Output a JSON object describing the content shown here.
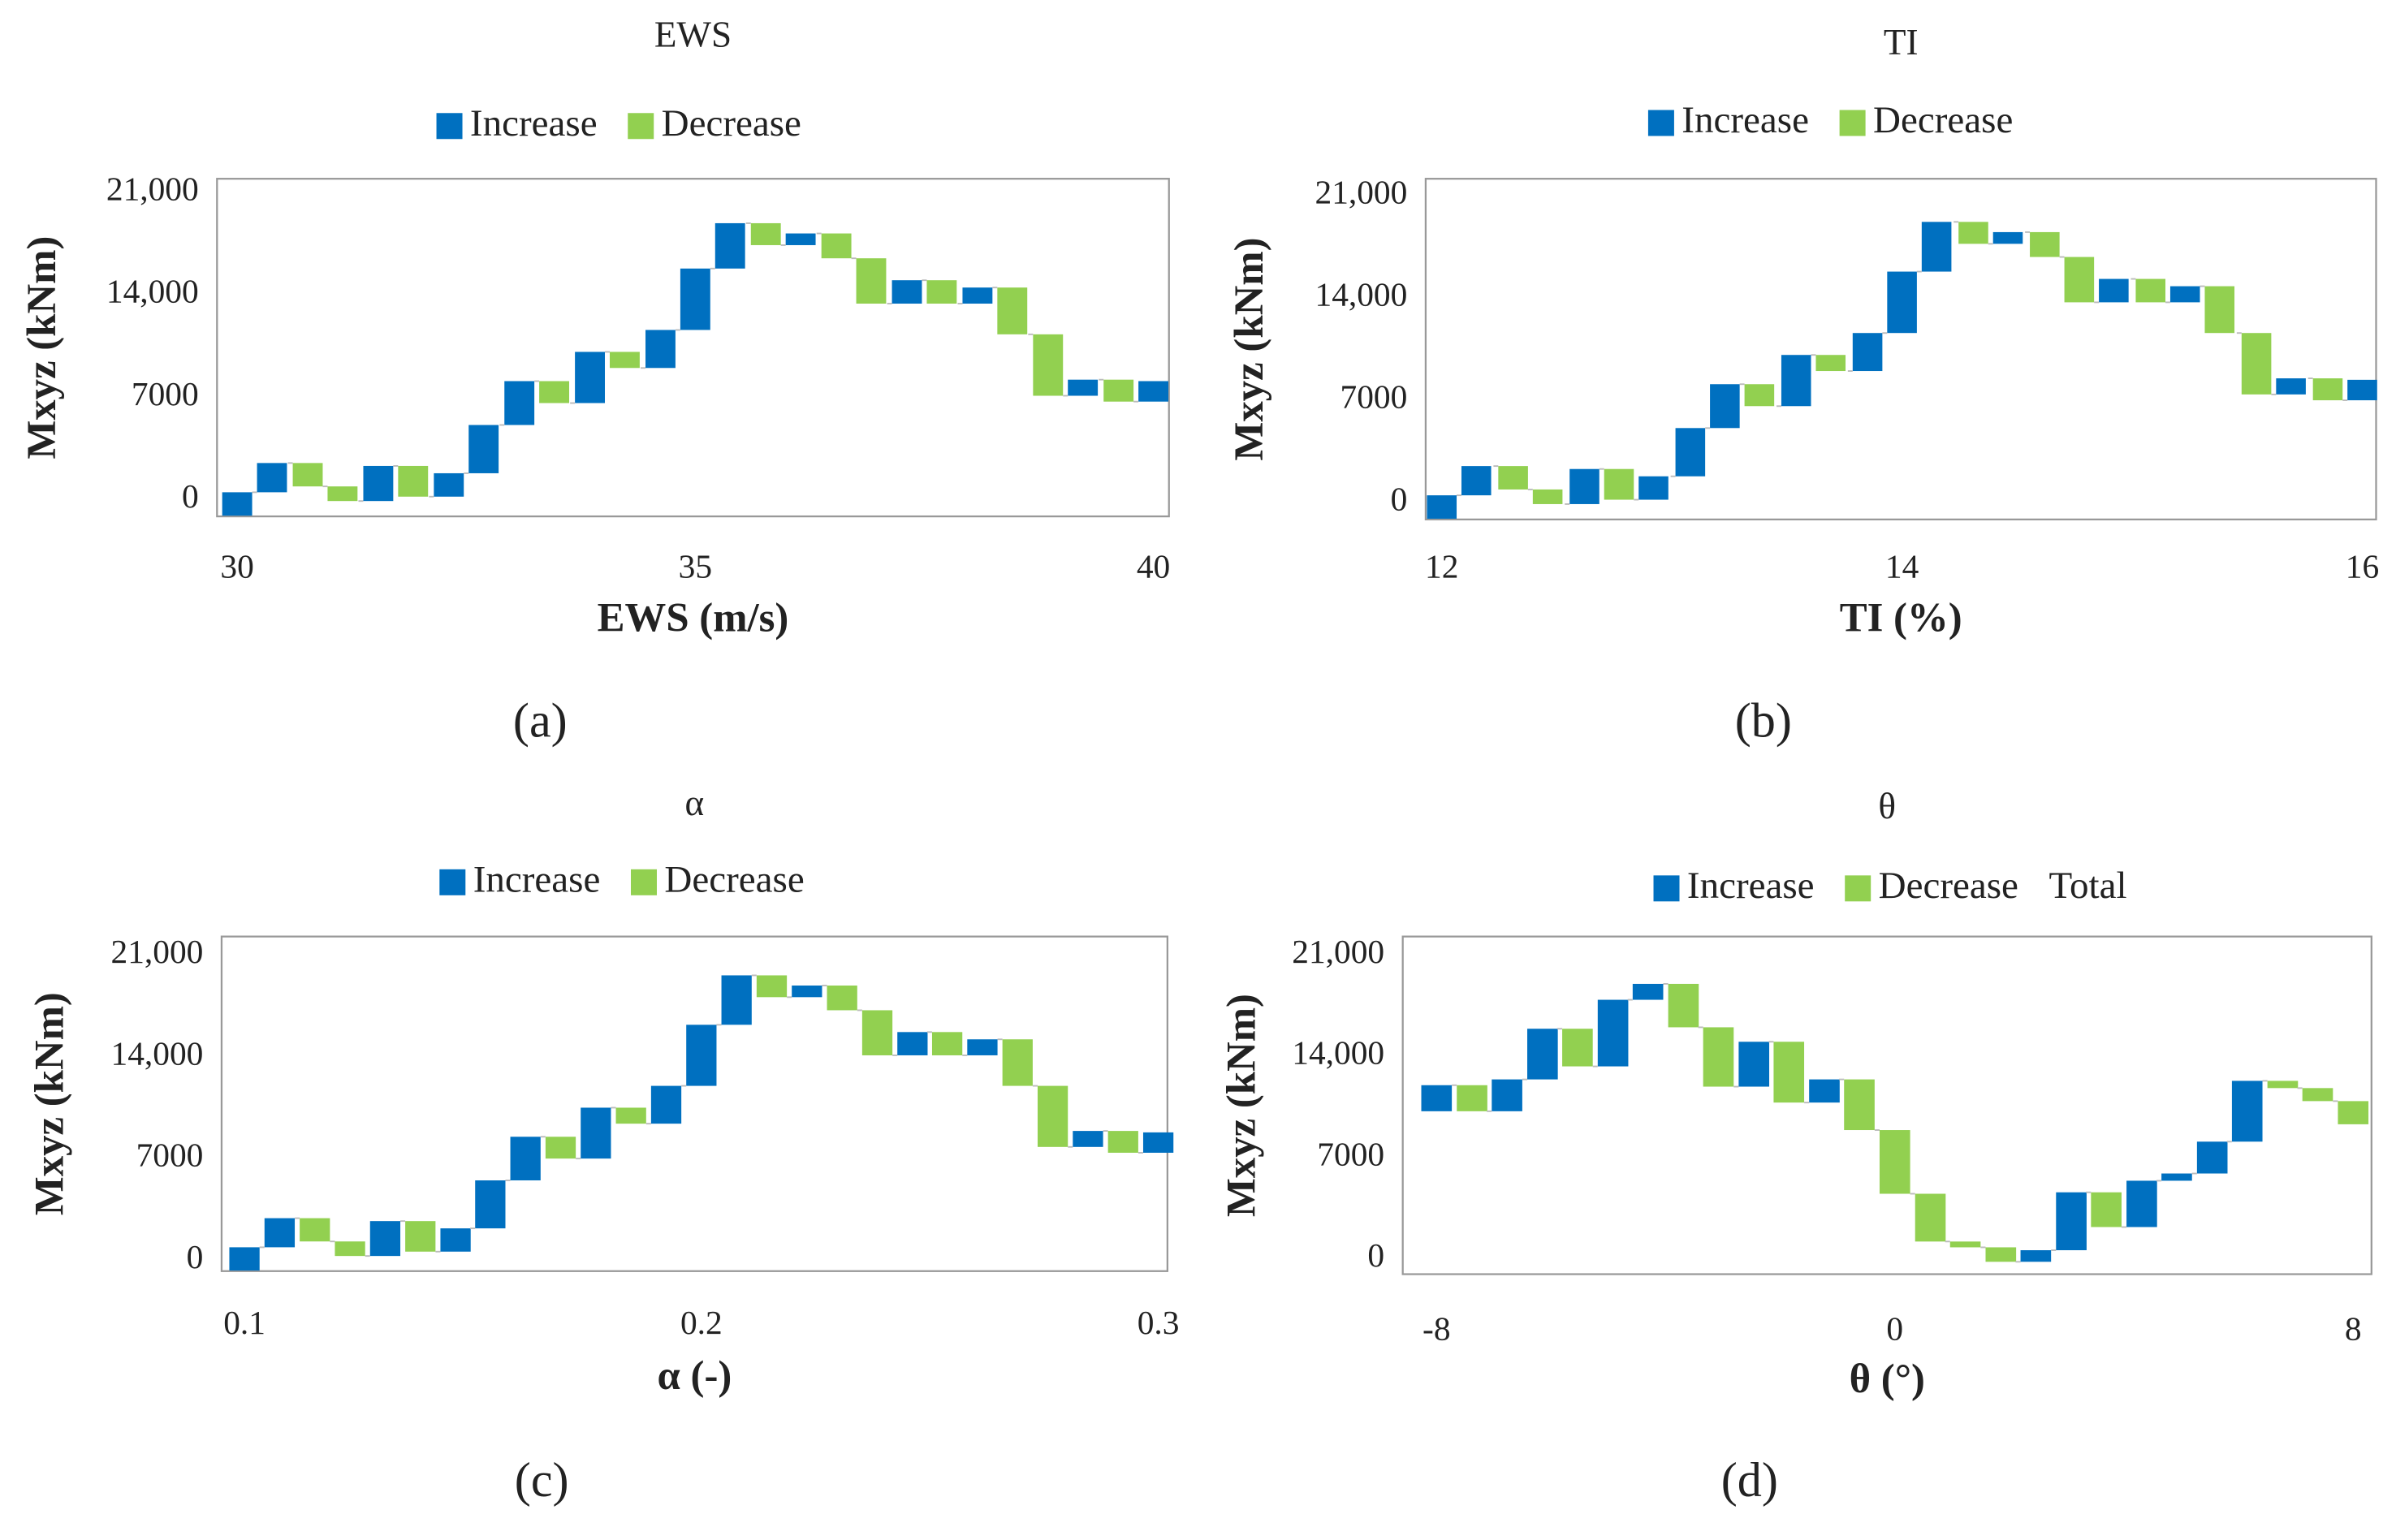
{
  "chart_data": [
    {
      "type": "waterfall",
      "title": "EWS",
      "label": "(a)",
      "xlabel": "EWS (m/s)",
      "ylabel": "Mxyz (kNm)",
      "series": [
        {
          "name": "Increase",
          "color": "#0070c0"
        },
        {
          "name": "Decrease",
          "color": "#92d050"
        }
      ],
      "start": -1100,
      "x": [
        30,
        30.38,
        30.77,
        31.15,
        31.54,
        31.92,
        32.31,
        32.69,
        33.08,
        33.46,
        33.85,
        34.23,
        34.62,
        35,
        35.38,
        35.77,
        36.15,
        36.54,
        36.92,
        37.31,
        37.69,
        38.08,
        38.46,
        38.85,
        39.23,
        39.62,
        40
      ],
      "values": [
        1600,
        2000,
        -1600,
        -1000,
        2400,
        -2100,
        1600,
        3300,
        3000,
        -1500,
        3500,
        -1100,
        2600,
        4200,
        3100,
        -1500,
        800,
        -1700,
        -3100,
        1600,
        -1600,
        1100,
        -3200,
        -4200,
        1100,
        -1500,
        1400
      ],
      "xlim": [
        29.78,
        40.17
      ],
      "xticks": [
        30,
        35,
        40
      ],
      "ylim": [
        -1150,
        21940
      ],
      "yticks": [
        0,
        7000,
        {
          "value": 14000,
          "label": "14,000"
        },
        {
          "value": 21000,
          "label": "21,000"
        }
      ]
    },
    {
      "type": "waterfall",
      "title": "TI",
      "label": "(b)",
      "xlabel": "TI (%)",
      "ylabel": "Mxyz (kNm)",
      "series": [
        {
          "name": "Increase",
          "color": "#0070c0"
        },
        {
          "name": "Decrease",
          "color": "#92d050"
        }
      ],
      "start": -1100,
      "x": [
        12,
        12.15,
        12.31,
        12.46,
        12.62,
        12.77,
        12.92,
        13.08,
        13.23,
        13.38,
        13.54,
        13.69,
        13.85,
        14,
        14.15,
        14.31,
        14.46,
        14.62,
        14.77,
        14.92,
        15.08,
        15.23,
        15.38,
        15.54,
        15.69,
        15.85,
        16
      ],
      "values": [
        1600,
        2000,
        -1600,
        -1000,
        2400,
        -2100,
        1600,
        3300,
        3000,
        -1500,
        3500,
        -1100,
        2600,
        4200,
        3400,
        -1500,
        800,
        -1700,
        -3100,
        1600,
        -1600,
        1100,
        -3200,
        -4200,
        1100,
        -1500,
        1400
      ],
      "xlim": [
        11.93,
        16.06
      ],
      "xticks": [
        12,
        14,
        16
      ],
      "ylim": [
        -1150,
        22150
      ],
      "yticks": [
        0,
        7000,
        {
          "value": 14000,
          "label": "14,000"
        },
        {
          "value": 21000,
          "label": "21,000"
        }
      ]
    },
    {
      "type": "waterfall",
      "title": "α",
      "label": "(c)",
      "xlabel": "α (-)",
      "ylabel": "Mxyz (kNm)",
      "series": [
        {
          "name": "Increase",
          "color": "#0070c0"
        },
        {
          "name": "Decrease",
          "color": "#92d050"
        }
      ],
      "start": -700,
      "x": [
        0.1,
        0.1077,
        0.1154,
        0.1231,
        0.1308,
        0.1385,
        0.1462,
        0.1538,
        0.1615,
        0.1692,
        0.1769,
        0.1846,
        0.1923,
        0.2,
        0.2077,
        0.2154,
        0.2231,
        0.2308,
        0.2385,
        0.2462,
        0.2538,
        0.2615,
        0.2692,
        0.2769,
        0.2846,
        0.2923,
        0.3
      ],
      "values": [
        1600,
        2000,
        -1600,
        -1000,
        2400,
        -2100,
        1600,
        3300,
        3000,
        -1500,
        3500,
        -1100,
        2600,
        4200,
        3400,
        -1500,
        800,
        -1700,
        -3100,
        1600,
        -1600,
        1100,
        -3200,
        -4200,
        1100,
        -1500,
        1400
      ],
      "xlim": [
        0.095,
        0.302
      ],
      "xticks": [
        0.1,
        0.2,
        0.3
      ],
      "ylim": [
        -740,
        22270
      ],
      "yticks": [
        0,
        7000,
        {
          "value": 14000,
          "label": "14,000"
        },
        {
          "value": 21000,
          "label": "21,000"
        }
      ]
    },
    {
      "type": "waterfall",
      "title": "θ",
      "label": "(d)",
      "xlabel": "θ (°)",
      "ylabel": "Mxyz (kNm)",
      "series": [
        {
          "name": "Increase",
          "color": "#0070c0"
        },
        {
          "name": "Decrease",
          "color": "#92d050"
        },
        {
          "name": "Total"
        }
      ],
      "start": 10200,
      "x": [
        -8,
        -7.38,
        -6.77,
        -6.15,
        -5.54,
        -4.92,
        -4.31,
        -3.69,
        -3.08,
        -2.46,
        -1.85,
        -1.23,
        -0.62,
        0,
        0.62,
        1.23,
        1.85,
        2.46,
        3.08,
        3.69,
        4.31,
        4.92,
        5.54,
        6.15,
        6.77,
        7.38,
        8
      ],
      "values": [
        1800,
        -1800,
        2200,
        3500,
        -2600,
        4600,
        1100,
        -3000,
        -4100,
        3100,
        -4200,
        1600,
        -3500,
        -4400,
        -3300,
        -400,
        -1000,
        800,
        4000,
        -2400,
        3200,
        500,
        2200,
        4200,
        -500,
        -900,
        -1600
      ],
      "xlim": [
        -8.59,
        8.32
      ],
      "xticks": [
        -8,
        0,
        8
      ],
      "ylim": [
        -1055,
        22270
      ],
      "yticks": [
        0,
        7000,
        {
          "value": 14000,
          "label": "14,000"
        },
        {
          "value": 21000,
          "label": "21,000"
        }
      ]
    }
  ]
}
